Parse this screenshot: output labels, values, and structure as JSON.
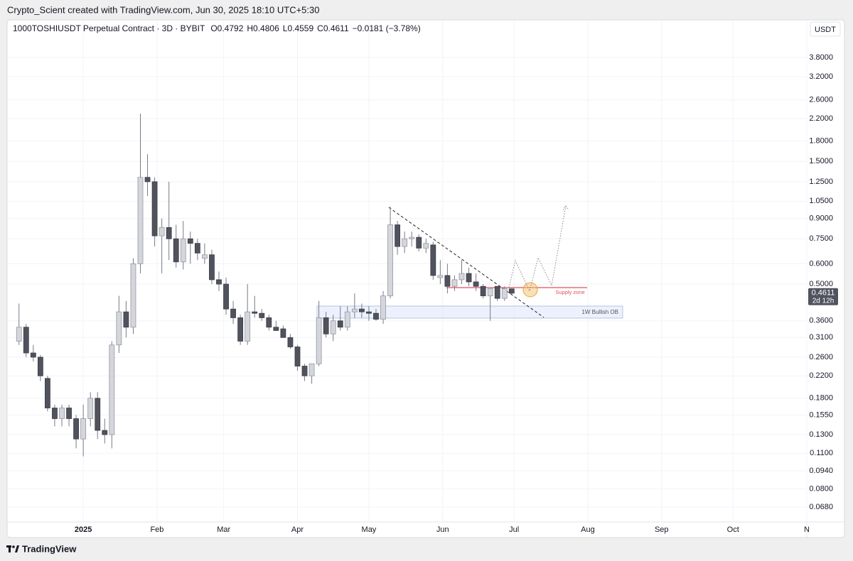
{
  "header": {
    "credit": "Crypto_Scient created with TradingView.com, Jun 30, 2025 18:10 UTC+5:30",
    "brand": "TradingView"
  },
  "chart_data": {
    "type": "candlestick",
    "title": "1000TOSHIUSDT Perpetual Contract · 3D · BYBIT",
    "change": "−0.0181 (−3.78%)",
    "currency": "USDT",
    "countdown": "2d 12h",
    "annotations": {
      "supply_zone": "Supply zone",
      "bullish_ob": "1W Bullish OB"
    },
    "log_scale": true,
    "grid": true,
    "up_color": "#d4d6dc",
    "down_color": "#50535e",
    "wick_color": "#787b86",
    "x": [
      -27,
      -24,
      -21,
      -18,
      -15,
      -12,
      -9,
      -6,
      -3,
      0,
      3,
      6,
      9,
      12,
      15,
      18,
      21,
      24,
      27,
      30,
      33,
      36,
      39,
      42,
      45,
      48,
      51,
      54,
      57,
      60,
      63,
      66,
      69,
      72,
      75,
      78,
      81,
      84,
      87,
      90,
      93,
      96,
      99,
      102,
      105,
      108,
      111,
      114,
      117,
      120,
      123,
      126,
      129,
      132,
      135,
      138,
      141,
      144,
      147,
      150,
      153,
      156,
      159,
      162,
      165,
      168,
      171,
      174,
      177,
      180
    ],
    "open": [
      0.3,
      0.34,
      0.27,
      0.26,
      0.215,
      0.165,
      0.15,
      0.165,
      0.15,
      0.125,
      0.15,
      0.18,
      0.135,
      0.13,
      0.29,
      0.39,
      0.34,
      0.6,
      1.3,
      1.25,
      0.77,
      0.83,
      0.75,
      0.61,
      0.75,
      0.72,
      0.63,
      0.65,
      0.52,
      0.5,
      0.4,
      0.37,
      0.3,
      0.39,
      0.385,
      0.37,
      0.34,
      0.335,
      0.31,
      0.285,
      0.24,
      0.22,
      0.245,
      0.37,
      0.32,
      0.36,
      0.34,
      0.39,
      0.4,
      0.39,
      0.385,
      0.365,
      0.45,
      0.85,
      0.7,
      0.75,
      0.76,
      0.69,
      0.71,
      0.53,
      0.54,
      0.49,
      0.52,
      0.55,
      0.51,
      0.49,
      0.45,
      0.49,
      0.44,
      0.4792
    ],
    "high": [
      0.42,
      0.35,
      0.29,
      0.265,
      0.22,
      0.17,
      0.17,
      0.17,
      0.155,
      0.17,
      0.19,
      0.19,
      0.15,
      0.3,
      0.45,
      0.43,
      0.63,
      2.3,
      1.6,
      1.3,
      0.9,
      1.25,
      0.85,
      0.88,
      0.8,
      0.75,
      0.72,
      0.68,
      0.56,
      0.53,
      0.43,
      0.38,
      0.5,
      0.45,
      0.4,
      0.38,
      0.36,
      0.345,
      0.32,
      0.29,
      0.245,
      0.23,
      0.43,
      0.39,
      0.38,
      0.41,
      0.41,
      0.46,
      0.42,
      0.41,
      0.4,
      0.47,
      1.0,
      0.88,
      0.8,
      0.8,
      0.78,
      0.75,
      0.73,
      0.62,
      0.6,
      0.54,
      0.62,
      0.58,
      0.55,
      0.5,
      0.48,
      0.49,
      0.49,
      0.4806
    ],
    "low": [
      0.29,
      0.26,
      0.25,
      0.21,
      0.16,
      0.14,
      0.14,
      0.14,
      0.115,
      0.107,
      0.14,
      0.125,
      0.12,
      0.115,
      0.27,
      0.31,
      0.32,
      0.55,
      1.1,
      0.7,
      0.55,
      0.62,
      0.58,
      0.57,
      0.6,
      0.62,
      0.6,
      0.5,
      0.47,
      0.38,
      0.35,
      0.29,
      0.29,
      0.37,
      0.36,
      0.33,
      0.33,
      0.31,
      0.28,
      0.23,
      0.21,
      0.205,
      0.24,
      0.31,
      0.3,
      0.33,
      0.33,
      0.37,
      0.37,
      0.36,
      0.36,
      0.35,
      0.44,
      0.65,
      0.66,
      0.7,
      0.67,
      0.66,
      0.52,
      0.5,
      0.46,
      0.47,
      0.5,
      0.49,
      0.47,
      0.44,
      0.36,
      0.43,
      0.43,
      0.4559
    ],
    "close": [
      0.34,
      0.27,
      0.26,
      0.22,
      0.165,
      0.15,
      0.165,
      0.15,
      0.125,
      0.15,
      0.18,
      0.135,
      0.13,
      0.29,
      0.39,
      0.34,
      0.6,
      1.3,
      1.25,
      0.77,
      0.83,
      0.75,
      0.61,
      0.75,
      0.72,
      0.66,
      0.65,
      0.52,
      0.5,
      0.4,
      0.37,
      0.3,
      0.39,
      0.385,
      0.37,
      0.34,
      0.33,
      0.31,
      0.285,
      0.24,
      0.22,
      0.245,
      0.37,
      0.32,
      0.36,
      0.34,
      0.39,
      0.4,
      0.39,
      0.385,
      0.365,
      0.45,
      0.85,
      0.7,
      0.75,
      0.76,
      0.69,
      0.72,
      0.54,
      0.54,
      0.49,
      0.52,
      0.55,
      0.51,
      0.49,
      0.45,
      0.48,
      0.44,
      0.48,
      0.4611
    ],
    "xlim": [
      -32,
      304
    ],
    "xticks": [
      {
        "value": 0,
        "label": "2025"
      },
      {
        "value": 31,
        "label": "Feb"
      },
      {
        "value": 59,
        "label": "Mar"
      },
      {
        "value": 90,
        "label": "Apr"
      },
      {
        "value": 120,
        "label": "May"
      },
      {
        "value": 151,
        "label": "Jun"
      },
      {
        "value": 181,
        "label": "Jul"
      },
      {
        "value": 212,
        "label": "Aug"
      },
      {
        "value": 243,
        "label": "Sep"
      },
      {
        "value": 273,
        "label": "Oct"
      },
      {
        "value": 304,
        "label": "N"
      }
    ],
    "ylim": [
      0.0595,
      5.32
    ],
    "yticks": [
      {
        "value": 3.8,
        "label": "3.8000"
      },
      {
        "value": 3.2,
        "label": "3.2000"
      },
      {
        "value": 2.6,
        "label": "2.6000"
      },
      {
        "value": 2.2,
        "label": "2.2000"
      },
      {
        "value": 1.8,
        "label": "1.8000"
      },
      {
        "value": 1.5,
        "label": "1.5000"
      },
      {
        "value": 1.25,
        "label": "1.2500"
      },
      {
        "value": 1.05,
        "label": "1.0500"
      },
      {
        "value": 0.9,
        "label": "0.9000"
      },
      {
        "value": 0.75,
        "label": "0.7500"
      },
      {
        "value": 0.6,
        "label": "0.6000"
      },
      {
        "value": 0.5,
        "label": "0.5000"
      },
      {
        "value": 0.36,
        "label": "0.3600"
      },
      {
        "value": 0.31,
        "label": "0.3100"
      },
      {
        "value": 0.26,
        "label": "0.2600"
      },
      {
        "value": 0.22,
        "label": "0.2200"
      },
      {
        "value": 0.18,
        "label": "0.1800"
      },
      {
        "value": 0.155,
        "label": "0.1550"
      },
      {
        "value": 0.13,
        "label": "0.1300"
      },
      {
        "value": 0.11,
        "label": "0.1100"
      },
      {
        "value": 0.094,
        "label": "0.0940"
      },
      {
        "value": 0.08,
        "label": "0.0800"
      },
      {
        "value": 0.068,
        "label": "0.0680"
      }
    ]
  }
}
